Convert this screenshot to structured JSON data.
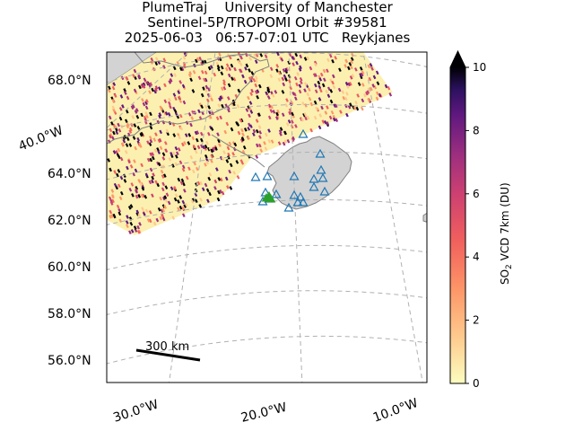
{
  "title": {
    "line1": "PlumeTraj    University of Manchester",
    "line2": "Sentinel-5P/TROPOMI Orbit #39581",
    "line3": "2025-06-03   06:57-07:01 UTC   Reykjanes"
  },
  "map": {
    "lat_labels": [
      "68.0°N",
      "64.0°N",
      "62.0°N",
      "60.0°N",
      "58.0°N",
      "56.0°N"
    ],
    "lon_labels": [
      "40.0°W",
      "30.0°W",
      "20.0°W",
      "10.0°W"
    ],
    "scale_bar_label": "300 km",
    "land_color": "#d3d3d3",
    "gridline_color": "#b0b0b0",
    "volcano_marker_color": "#2ca02c",
    "station_marker_color": "#1f77b4"
  },
  "colorbar": {
    "label_main": "SO",
    "label_sub": "2",
    "label_rest": " VCD 7km (DU)",
    "ticks": [
      "0",
      "2",
      "4",
      "6",
      "8",
      "10"
    ],
    "min": 0,
    "max": 10,
    "colormap": "magma_r",
    "extend": "max"
  }
}
